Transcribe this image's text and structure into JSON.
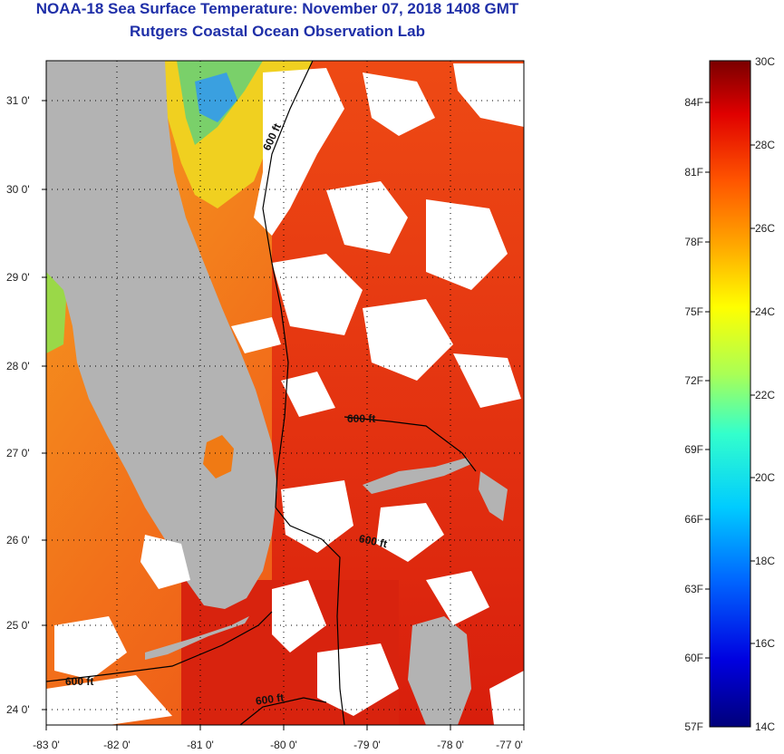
{
  "header": {
    "title": "NOAA-18 Sea Surface Temperature:  November 07, 2018 1408 GMT",
    "subtitle": "Rutgers Coastal Ocean Observation Lab"
  },
  "map": {
    "lon_labels": [
      "-83 0'",
      "-82 0'",
      "-81 0'",
      "-80 0'",
      "-79 0'",
      "-78 0'",
      "-77 0'"
    ],
    "lat_labels": [
      "31 0'",
      "30 0'",
      "29 0'",
      "28 0'",
      "27 0'",
      "26 0'",
      "25 0'",
      "24 0'"
    ],
    "contour_labels": [
      "600 ft",
      "600 ft",
      "600 ft",
      "600 ft",
      "600 ft"
    ],
    "colors": {
      "land": "#b3b3b3",
      "cloud": "#ffffff",
      "sst_warm": "#e22a10",
      "sst_mid": "#f25a12",
      "sst_cool": "#f59a1f"
    }
  },
  "colorbar": {
    "celsius": [
      "30C",
      "28C",
      "26C",
      "24C",
      "22C",
      "20C",
      "18C",
      "16C",
      "14C"
    ],
    "fahrenheit": [
      "84F",
      "81F",
      "78F",
      "75F",
      "72F",
      "69F",
      "66F",
      "63F",
      "60F",
      "57F"
    ],
    "gradient": [
      "#00007a",
      "#0000e0",
      "#0066ff",
      "#00ccff",
      "#33ffcc",
      "#aaff55",
      "#ffff00",
      "#ffaa00",
      "#ff5500",
      "#e00000",
      "#7a0000"
    ]
  }
}
